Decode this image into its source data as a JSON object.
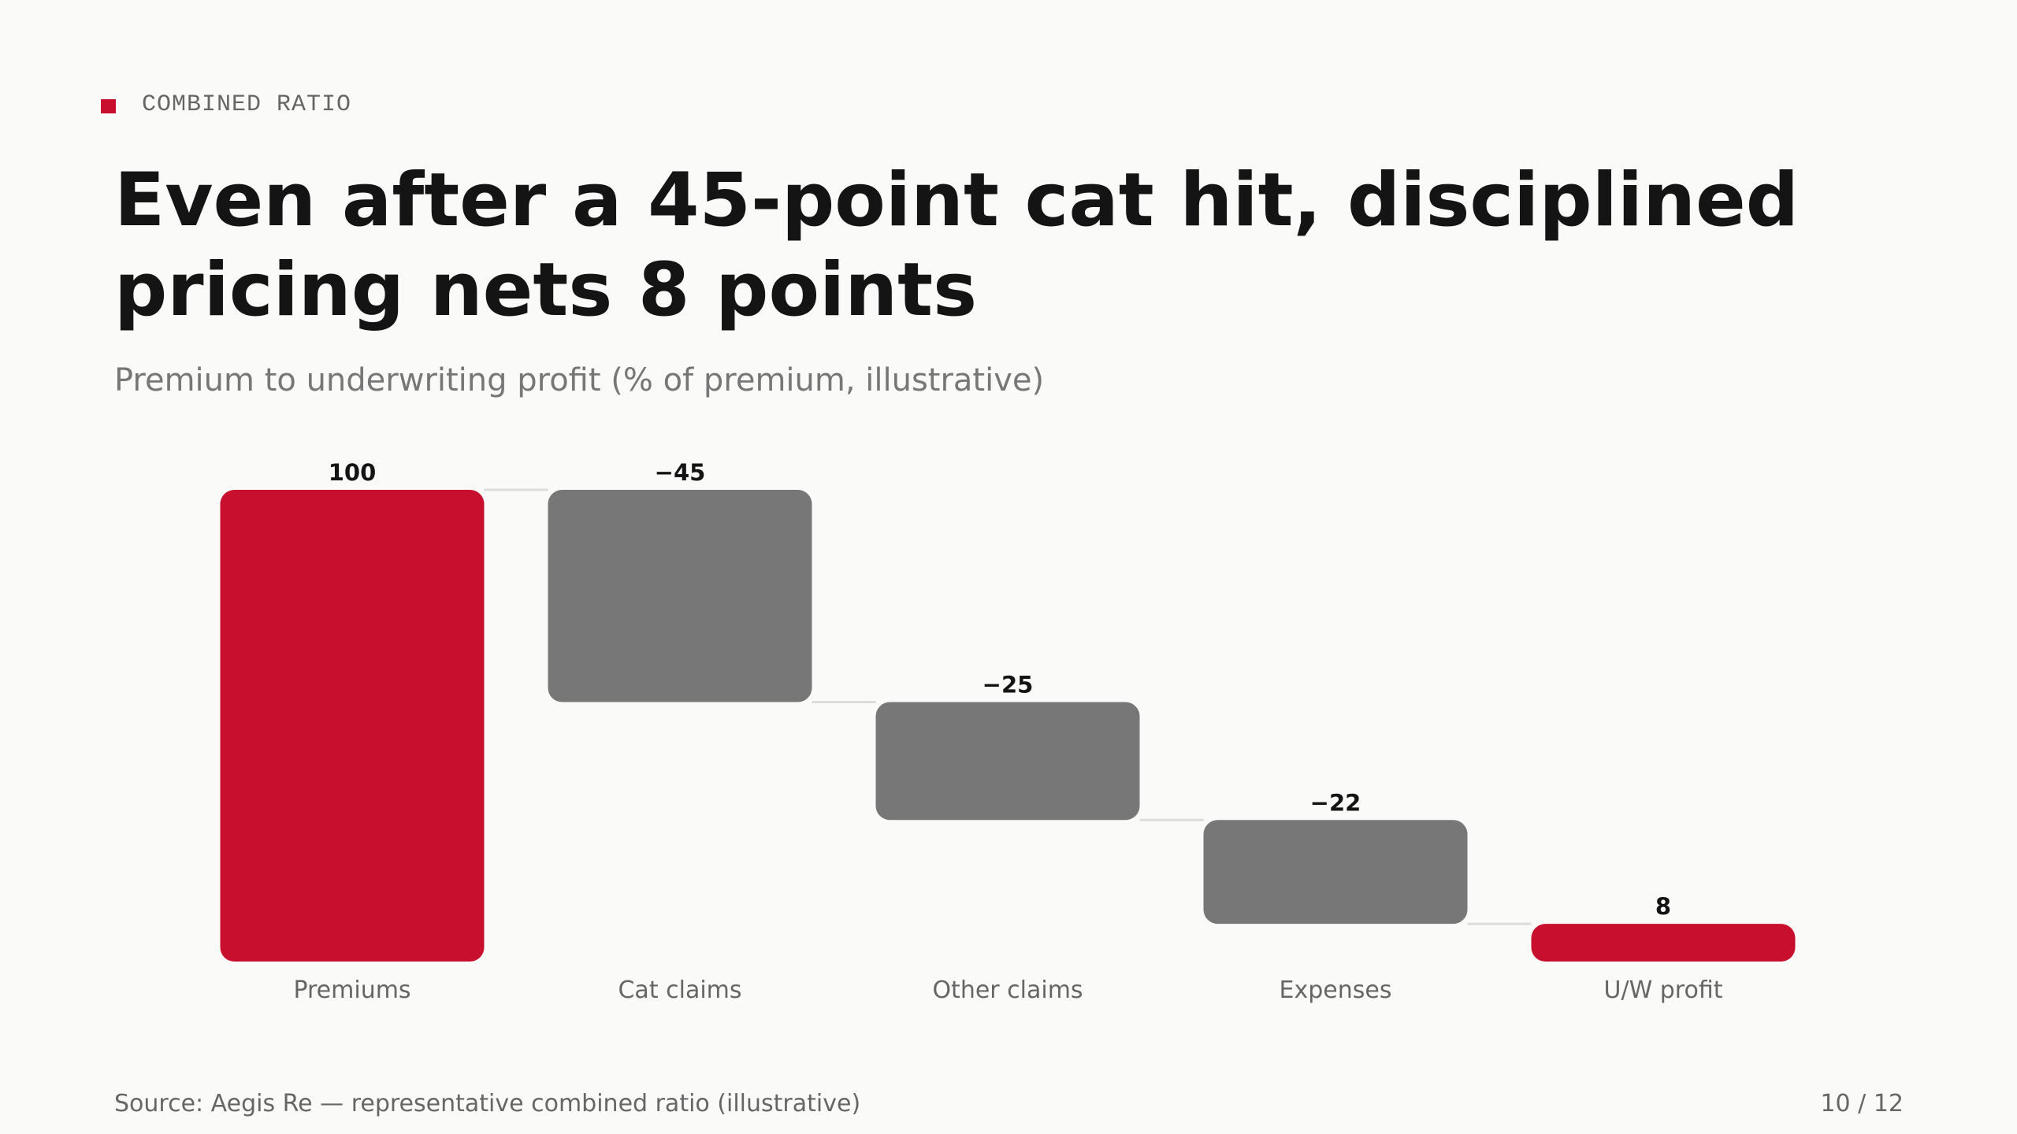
{
  "eyebrow": "COMBINED RATIO",
  "chart_data": {
    "type": "waterfall",
    "title": "Even after a 45-point cat hit, disciplined pricing nets 8 points",
    "subtitle": "Premium to underwriting profit (% of premium, illustrative)",
    "categories": [
      "Premiums",
      "Cat claims",
      "Other claims",
      "Expenses",
      "U/W profit"
    ],
    "values": [
      100,
      -45,
      -25,
      -22,
      8
    ],
    "value_labels": [
      "100",
      "−45",
      "−25",
      "−22",
      "8"
    ],
    "measures": [
      "absolute",
      "relative",
      "relative",
      "relative",
      "total"
    ],
    "bar_colors": [
      "#c8102e",
      "#777777",
      "#777777",
      "#777777",
      "#c8102e"
    ],
    "ylim": [
      0,
      100
    ]
  },
  "source": "Source: Aegis Re — representative combined ratio (illustrative)",
  "page": "10 / 12"
}
